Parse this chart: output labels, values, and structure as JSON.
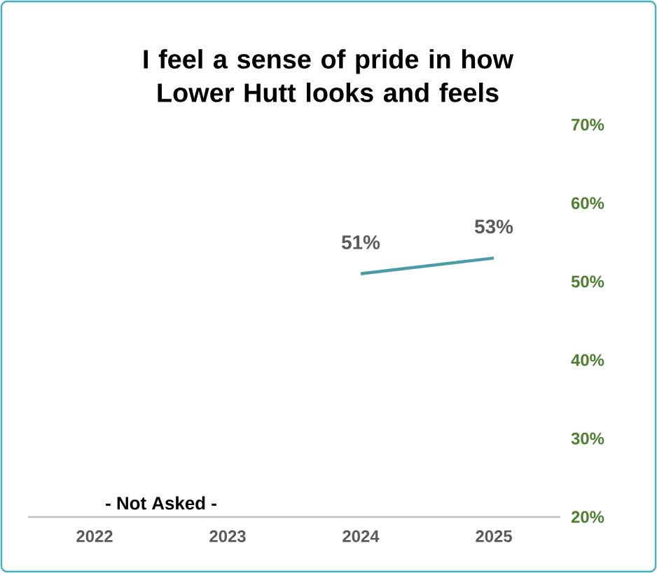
{
  "chart_data": {
    "type": "line",
    "title": "I feel a sense of pride in how Lower Hutt looks and feels",
    "categories": [
      "2022",
      "2023",
      "2024",
      "2025"
    ],
    "series": [
      {
        "color": "#4a9ca6",
        "values": [
          null,
          null,
          51,
          53
        ],
        "value_labels": [
          null,
          null,
          "51%",
          "53%"
        ]
      }
    ],
    "ylim": [
      20,
      70
    ],
    "yticks": [
      {
        "value": 20,
        "label": "20%"
      },
      {
        "value": 30,
        "label": "30%"
      },
      {
        "value": 40,
        "label": "40%"
      },
      {
        "value": 50,
        "label": "50%"
      },
      {
        "value": 60,
        "label": "60%"
      },
      {
        "value": 70,
        "label": "70%"
      }
    ],
    "grid": false,
    "legend": false,
    "marker": "none",
    "line_style": "solid",
    "annotations": [
      "- Not Asked -"
    ]
  }
}
